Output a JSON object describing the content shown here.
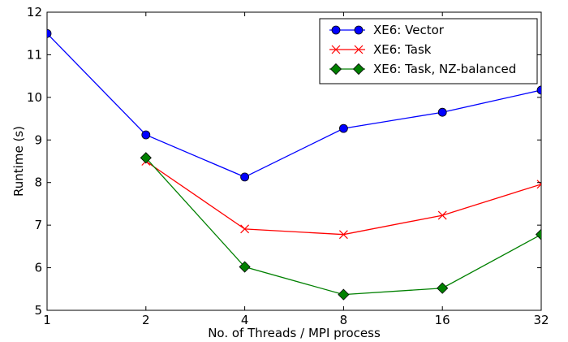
{
  "chart_data": {
    "type": "line",
    "title": "",
    "xlabel": "No. of Threads / MPI process",
    "ylabel": "Runtime (s)",
    "x_scale": "log2",
    "x": [
      1,
      2,
      4,
      8,
      16,
      32
    ],
    "x_tick_labels": [
      "1",
      "2",
      "4",
      "8",
      "16",
      "32"
    ],
    "ylim": [
      5,
      12
    ],
    "y_ticks": [
      5,
      6,
      7,
      8,
      9,
      10,
      11,
      12
    ],
    "grid": false,
    "legend_position": "top-right",
    "series": [
      {
        "name": "XE6: Vector",
        "color": "#0000ff",
        "marker": "circle",
        "x": [
          1,
          2,
          4,
          8,
          16,
          32
        ],
        "y": [
          11.5,
          9.12,
          8.13,
          9.27,
          9.65,
          10.17
        ]
      },
      {
        "name": "XE6: Task",
        "color": "#ff0000",
        "marker": "x",
        "x": [
          2,
          4,
          8,
          16,
          32
        ],
        "y": [
          8.5,
          6.91,
          6.78,
          7.23,
          7.96
        ]
      },
      {
        "name": "XE6: Task, NZ-balanced",
        "color": "#008000",
        "marker": "diamond",
        "x": [
          2,
          4,
          8,
          16,
          32
        ],
        "y": [
          8.58,
          6.02,
          5.37,
          5.52,
          6.78
        ]
      }
    ]
  }
}
